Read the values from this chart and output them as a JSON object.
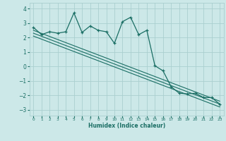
{
  "xlabel": "Humidex (Indice chaleur)",
  "ylabel": "",
  "bg_color": "#cce8e8",
  "grid_color": "#aacfcf",
  "line_color": "#1a6e64",
  "xlim": [
    -0.5,
    23.5
  ],
  "ylim": [
    -3.4,
    4.4
  ],
  "yticks": [
    -3,
    -2,
    -1,
    0,
    1,
    2,
    3,
    4
  ],
  "xticks": [
    0,
    1,
    2,
    3,
    4,
    5,
    6,
    7,
    8,
    9,
    10,
    11,
    12,
    13,
    14,
    15,
    16,
    17,
    18,
    19,
    20,
    21,
    22,
    23
  ],
  "jagged_x": [
    0,
    1,
    2,
    3,
    4,
    5,
    6,
    7,
    8,
    9,
    10,
    11,
    12,
    13,
    14,
    15,
    16,
    17,
    18,
    19,
    20,
    21,
    22,
    23
  ],
  "jagged_y": [
    2.7,
    2.2,
    2.4,
    2.3,
    2.4,
    3.7,
    2.35,
    2.8,
    2.5,
    2.4,
    1.6,
    3.1,
    3.4,
    2.2,
    2.5,
    0.05,
    -0.3,
    -1.4,
    -1.85,
    -1.9,
    -1.85,
    -2.15,
    -2.15,
    -2.6
  ],
  "line1_x": [
    0,
    23
  ],
  "line1_y": [
    2.5,
    -2.4
  ],
  "line2_x": [
    0,
    23
  ],
  "line2_y": [
    2.3,
    -2.6
  ],
  "line3_x": [
    0,
    23
  ],
  "line3_y": [
    2.1,
    -2.8
  ]
}
